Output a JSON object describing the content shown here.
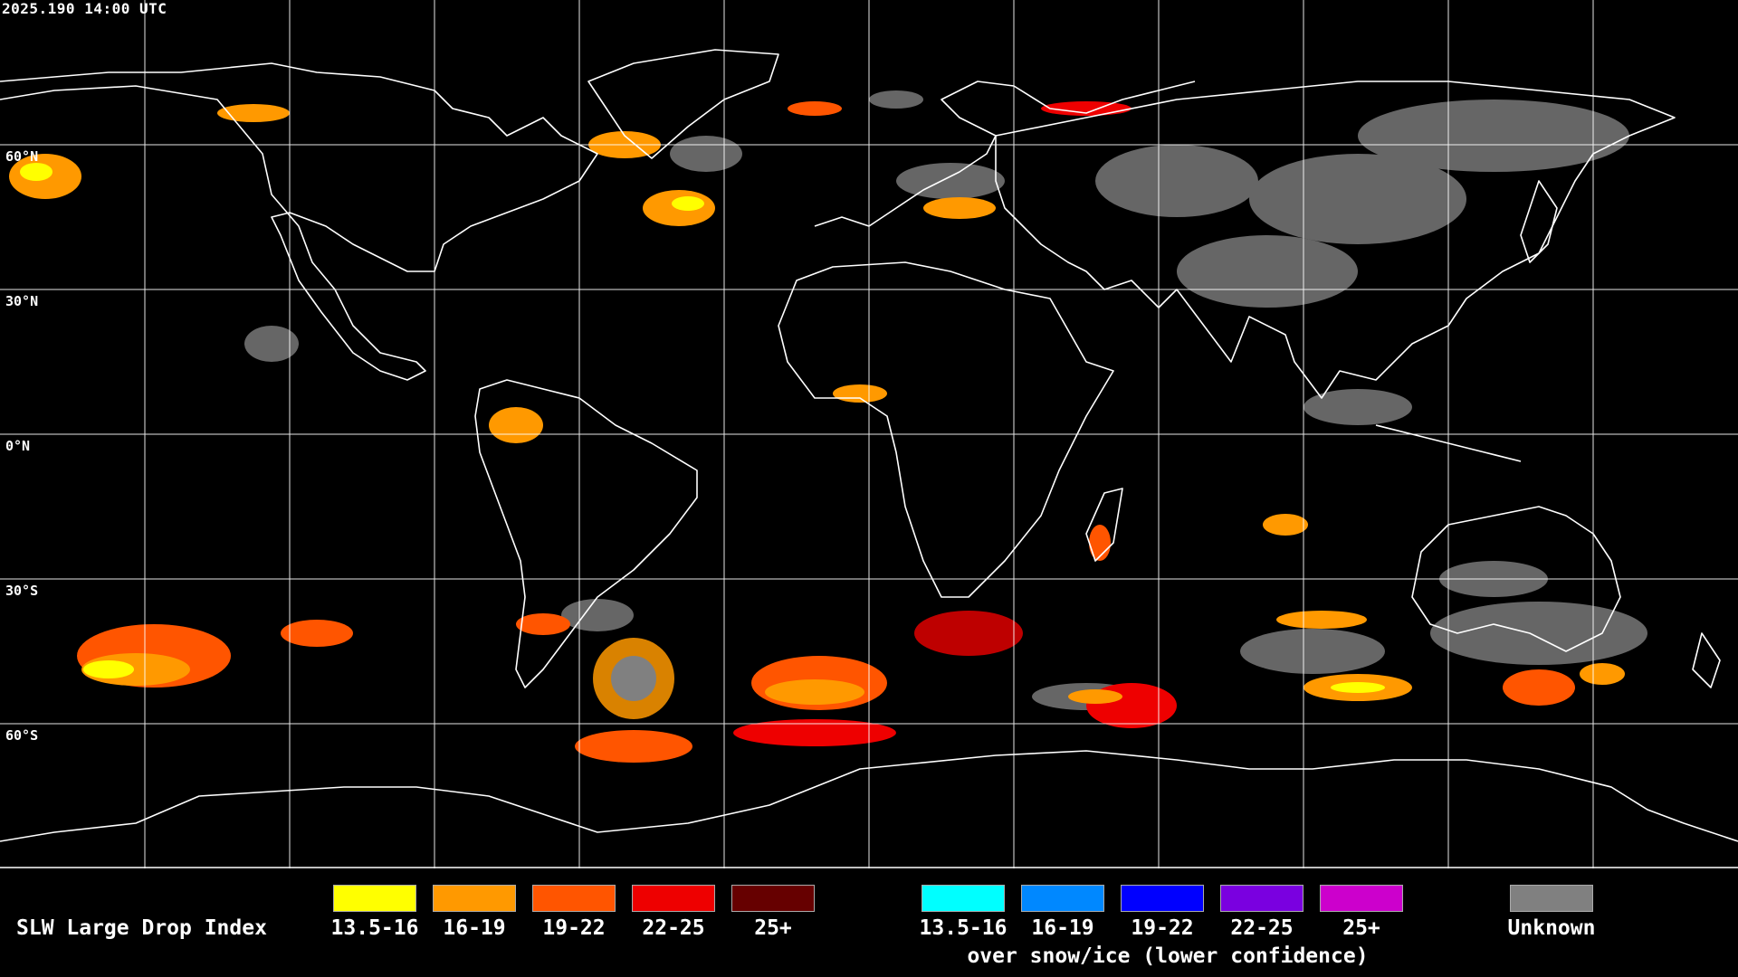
{
  "timestamp": "2025.190 14:00 UTC",
  "map": {
    "lat_labels": [
      "60°N",
      "30°N",
      "0°N",
      "30°S",
      "60°S"
    ]
  },
  "legend": {
    "title": "SLW Large Drop Index",
    "main": [
      {
        "label": "13.5-16",
        "color": "#ffff00"
      },
      {
        "label": "16-19",
        "color": "#ff9900"
      },
      {
        "label": "19-22",
        "color": "#ff5500"
      },
      {
        "label": "22-25",
        "color": "#ee0000"
      },
      {
        "label": "25+",
        "color": "#660000"
      }
    ],
    "snow_ice": [
      {
        "label": "13.5-16",
        "color": "#00ffff"
      },
      {
        "label": "16-19",
        "color": "#0088ff"
      },
      {
        "label": "19-22",
        "color": "#0000ff"
      },
      {
        "label": "22-25",
        "color": "#7a00e0"
      },
      {
        "label": "25+",
        "color": "#cc00cc"
      }
    ],
    "snow_ice_note": "over snow/ice (lower confidence)",
    "unknown": {
      "label": "Unknown",
      "color": "#808080"
    }
  }
}
